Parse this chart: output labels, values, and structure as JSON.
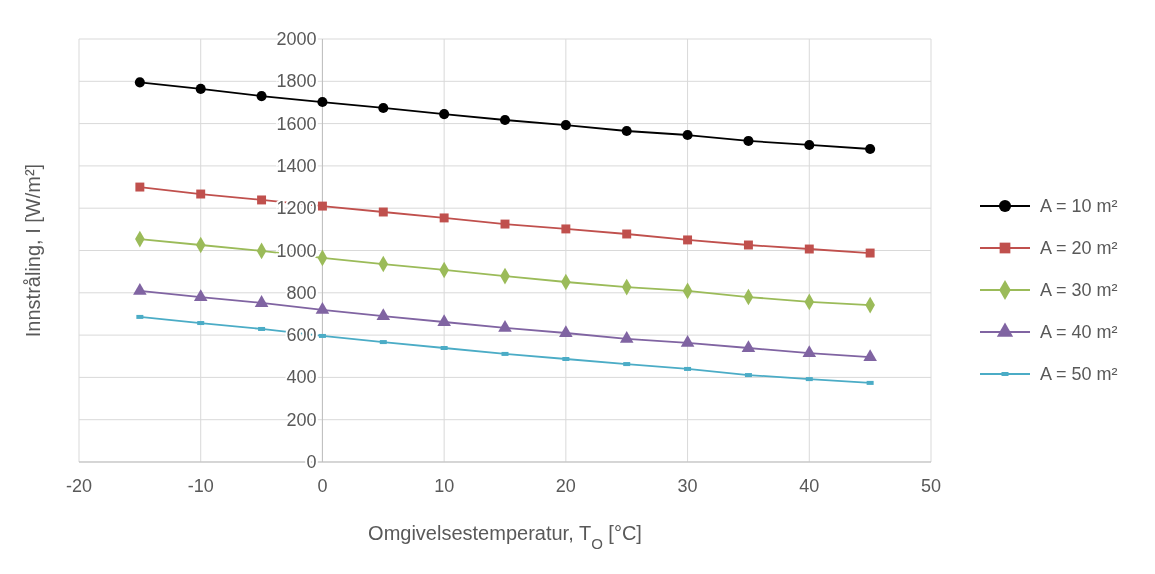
{
  "chart_data": {
    "type": "line",
    "xlabel": "Omgivelsestemperatur, T$_{O}$ [°C]",
    "ylabel": "Innstråling, I [W/m²]",
    "x": [
      -15,
      -10,
      -5,
      0,
      5,
      10,
      15,
      20,
      25,
      30,
      35,
      40,
      45
    ],
    "xlim": [
      -20,
      50
    ],
    "xticks": [
      -20,
      -10,
      0,
      10,
      20,
      30,
      40,
      50
    ],
    "ylim": [
      0,
      2000
    ],
    "yticks": [
      0,
      200,
      400,
      600,
      800,
      1000,
      1200,
      1400,
      1600,
      1800,
      2000
    ],
    "grid": true,
    "legend": "right",
    "line_style": "solid",
    "series": [
      {
        "name": "A = 10 m²",
        "color": "#000000",
        "marker": "circle",
        "values": [
          1795,
          1764,
          1730,
          1702,
          1674,
          1645,
          1617,
          1593,
          1565,
          1546,
          1518,
          1499,
          1480
        ]
      },
      {
        "name": "A = 20 m²",
        "color": "#c0504d",
        "marker": "square",
        "values": [
          1300,
          1267,
          1239,
          1210,
          1182,
          1154,
          1125,
          1102,
          1078,
          1050,
          1026,
          1007,
          988
        ]
      },
      {
        "name": "A = 30 m²",
        "color": "#9bbb59",
        "marker": "diamond",
        "values": [
          1054,
          1026,
          998,
          965,
          936,
          908,
          879,
          851,
          827,
          809,
          780,
          757,
          742
        ]
      },
      {
        "name": "A = 40 m²",
        "color": "#8064a2",
        "marker": "triangle",
        "values": [
          809,
          780,
          752,
          719,
          690,
          662,
          634,
          610,
          582,
          563,
          539,
          515,
          496
        ]
      },
      {
        "name": "A = 50 m²",
        "color": "#4bacc6",
        "marker": "square",
        "values": [
          686,
          657,
          629,
          596,
          567,
          539,
          511,
          487,
          463,
          440,
          411,
          392,
          374
        ]
      }
    ]
  }
}
